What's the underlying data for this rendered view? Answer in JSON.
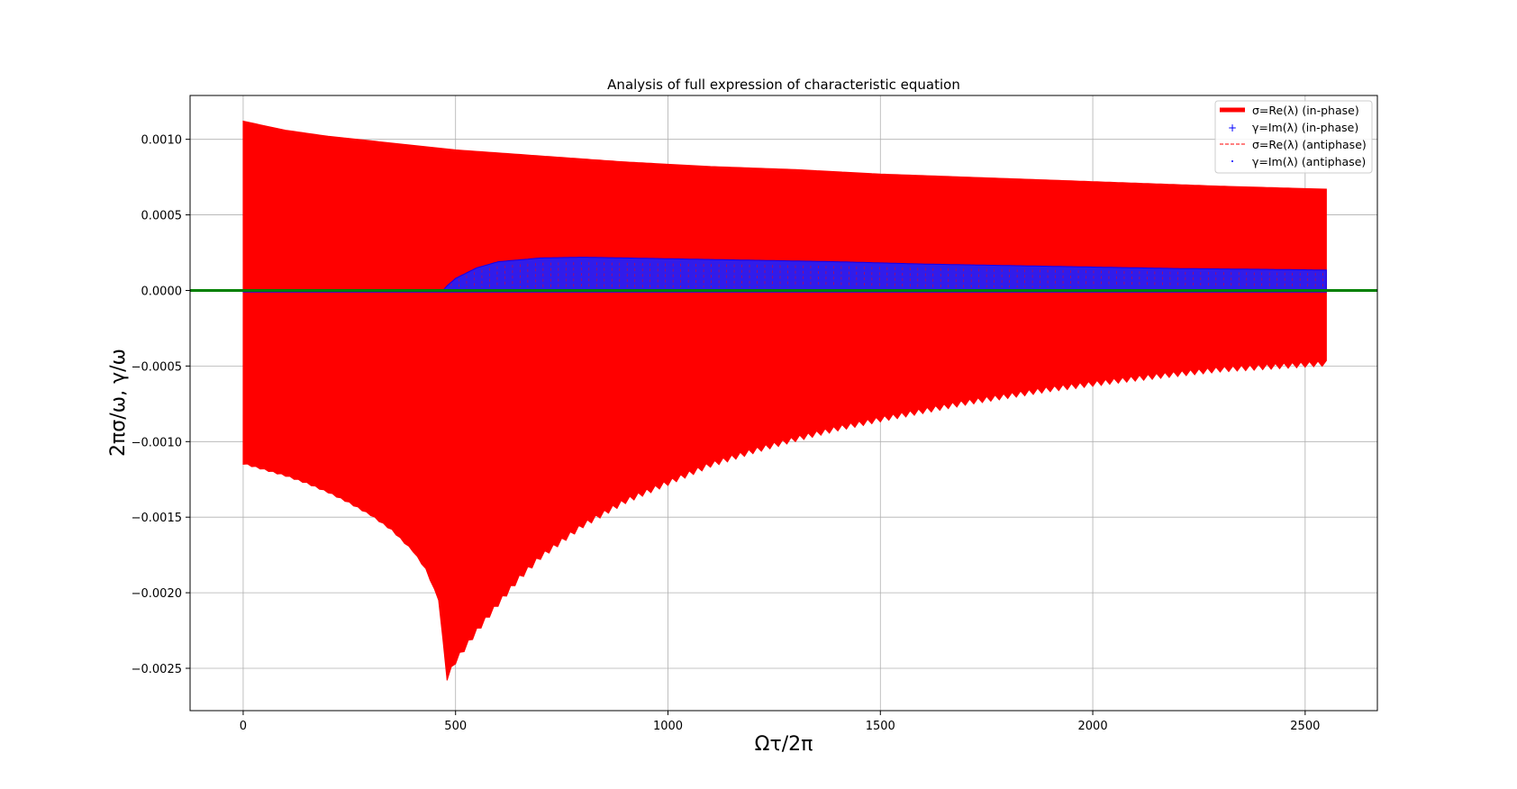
{
  "chart_data": {
    "type": "line",
    "title": "Analysis of full expression of characteristic equation",
    "xlabel": "Ωτ/2π",
    "ylabel": "2πσ/ω, γ/ω",
    "xlim": [
      -125,
      2670
    ],
    "ylim": [
      -0.00278,
      0.00129
    ],
    "grid": true,
    "legend_position": "top-right",
    "x_ticks": [
      {
        "value": 0,
        "label": "0"
      },
      {
        "value": 500,
        "label": "500"
      },
      {
        "value": 1000,
        "label": "1000"
      },
      {
        "value": 1500,
        "label": "1500"
      },
      {
        "value": 2000,
        "label": "2000"
      },
      {
        "value": 2500,
        "label": "2500"
      }
    ],
    "y_ticks": [
      {
        "value": 0.001,
        "label": "0.0010"
      },
      {
        "value": 0.0005,
        "label": "0.0005"
      },
      {
        "value": 0.0,
        "label": "0.0000"
      },
      {
        "value": -0.0005,
        "label": "−0.0005"
      },
      {
        "value": -0.001,
        "label": "−0.0010"
      },
      {
        "value": -0.0015,
        "label": "−0.0015"
      },
      {
        "value": -0.002,
        "label": "−0.0020"
      },
      {
        "value": -0.0025,
        "label": "−0.0025"
      }
    ],
    "series": [
      {
        "name": "σ=Re(λ) (in-phase)",
        "color": "#ff0000",
        "style": "thick-line-filled-envelope",
        "x_range": [
          0,
          2550
        ],
        "upper_envelope": {
          "x": [
            0,
            100,
            200,
            300,
            400,
            500,
            700,
            900,
            1100,
            1300,
            1500,
            1700,
            1900,
            2100,
            2300,
            2550
          ],
          "y": [
            0.00112,
            0.00106,
            0.00102,
            0.00099,
            0.00096,
            0.00093,
            0.00089,
            0.00085,
            0.00082,
            0.0008,
            0.00077,
            0.00075,
            0.00073,
            0.00071,
            0.00069,
            0.00067
          ]
        },
        "lower_envelope": {
          "x": [
            0,
            50,
            100,
            150,
            200,
            250,
            300,
            350,
            400,
            430,
            460,
            480,
            500,
            550,
            600,
            650,
            700,
            800,
            900,
            1000,
            1100,
            1200,
            1300,
            1400,
            1500,
            1700,
            1900,
            2100,
            2300,
            2550
          ],
          "y": [
            -0.00115,
            -0.00119,
            -0.00123,
            -0.00128,
            -0.00134,
            -0.00141,
            -0.00149,
            -0.00159,
            -0.00173,
            -0.00185,
            -0.00205,
            -0.00258,
            -0.00247,
            -0.00227,
            -0.00209,
            -0.00192,
            -0.00178,
            -0.00157,
            -0.00141,
            -0.00129,
            -0.00117,
            -0.00108,
            -0.001,
            -0.00093,
            -0.00087,
            -0.00076,
            -0.00067,
            -0.0006,
            -0.00054,
            -0.0005
          ]
        }
      },
      {
        "name": "γ=Im(λ) (in-phase)",
        "color": "#0000ff",
        "style": "plus-markers",
        "x_range": [
          0,
          2550
        ],
        "upper_envelope": {
          "x": [
            0,
            470,
            480,
            500,
            550,
            600,
            700,
            800,
            900,
            1000,
            1200,
            1400,
            1600,
            1800,
            2000,
            2200,
            2400,
            2550
          ],
          "y": [
            0.0,
            0.0,
            3e-05,
            8e-05,
            0.00015,
            0.00019,
            0.000215,
            0.00022,
            0.000215,
            0.00021,
            0.0002,
            0.00019,
            0.000175,
            0.000165,
            0.000155,
            0.000145,
            0.00014,
            0.000135
          ]
        },
        "lower_envelope": {
          "x": [
            0,
            2550
          ],
          "y": [
            -1e-05,
            -1e-05
          ]
        }
      },
      {
        "name": "σ=Re(λ) (antiphase)",
        "color": "#ff0000",
        "style": "dashed-line"
      },
      {
        "name": "γ=Im(λ) (antiphase)",
        "color": "#0000ff",
        "style": "dot-markers"
      },
      {
        "name": "",
        "color": "#008000",
        "style": "zero-line",
        "x": [
          -125,
          2670
        ],
        "y": [
          0,
          0
        ]
      }
    ]
  }
}
